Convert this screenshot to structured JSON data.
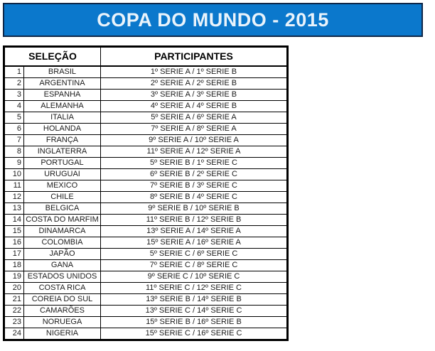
{
  "title": "COPA DO MUNDO - 2015",
  "colors": {
    "banner_bg": "#0b78cc",
    "banner_border": "#0f2748",
    "banner_text": "#e9f3fb",
    "grid_line": "#000000",
    "cell_text": "#1c1c1c"
  },
  "table": {
    "headers": {
      "selecao": "SELEÇÃO",
      "participantes": "PARTICIPANTES"
    },
    "rows": [
      {
        "n": "1",
        "team": "BRASIL",
        "participants": "1º SERIE A / 1º SERIE B"
      },
      {
        "n": "2",
        "team": "ARGENTINA",
        "participants": "2º SERIE A / 2º SERIE B"
      },
      {
        "n": "3",
        "team": "ESPANHA",
        "participants": "3º SERIE A / 3º SERIE B"
      },
      {
        "n": "4",
        "team": "ALEMANHA",
        "participants": "4º SERIE A / 4º SERIE B"
      },
      {
        "n": "5",
        "team": "ITALIA",
        "participants": "5º SERIE A / 6º SERIE A"
      },
      {
        "n": "6",
        "team": "HOLANDA",
        "participants": "7º SERIE A / 8º SERIE A"
      },
      {
        "n": "7",
        "team": "FRANÇA",
        "participants": "9º SERIE A / 10º SERIE A"
      },
      {
        "n": "8",
        "team": "INGLATERRA",
        "participants": "11º SERIE A / 12º SERIE A"
      },
      {
        "n": "9",
        "team": "PORTUGAL",
        "participants": "5º SERIE B / 1º SERIE C"
      },
      {
        "n": "10",
        "team": "URUGUAI",
        "participants": "6º SERIE B / 2º SERIE C"
      },
      {
        "n": "11",
        "team": "MEXICO",
        "participants": "7º SERIE B / 3º SERIE C"
      },
      {
        "n": "12",
        "team": "CHILE",
        "participants": "8º SERIE B / 4º SERIE C"
      },
      {
        "n": "13",
        "team": "BELGICA",
        "participants": "9º SERIE B / 10º SERIE B"
      },
      {
        "n": "14",
        "team": "COSTA DO MARFIM",
        "participants": "11º SERIE B / 12º SERIE B"
      },
      {
        "n": "15",
        "team": "DINAMARCA",
        "participants": "13º SERIE A / 14º SERIE A"
      },
      {
        "n": "16",
        "team": "COLOMBIA",
        "participants": "15º SERIE A / 16º SERIE A"
      },
      {
        "n": "17",
        "team": "JAPÃO",
        "participants": "5º SERIE C / 6º SERIE C"
      },
      {
        "n": "18",
        "team": "GANA",
        "participants": "7º SERIE C / 8º SERIE C"
      },
      {
        "n": "19",
        "team": "ESTADOS UNIDOS",
        "participants": "9º SERIE C / 10º SERIE C"
      },
      {
        "n": "20",
        "team": "COSTA RICA",
        "participants": "11º SERIE C / 12º SERIE C"
      },
      {
        "n": "21",
        "team": "COREIA DO SUL",
        "participants": "13º SERIE B / 14º SERIE B"
      },
      {
        "n": "22",
        "team": "CAMARÕES",
        "participants": "13º SERIE C / 14º SERIE C"
      },
      {
        "n": "23",
        "team": "NORUEGA",
        "participants": "15º SERIE B / 16º SERIE B"
      },
      {
        "n": "24",
        "team": "NIGERIA",
        "participants": "15º SERIE C / 16º SERIE C"
      }
    ]
  }
}
